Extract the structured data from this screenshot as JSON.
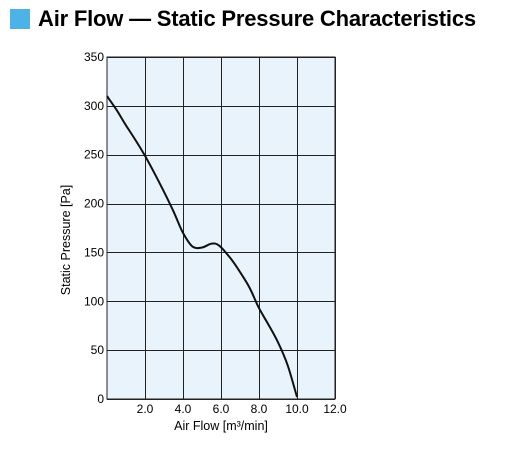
{
  "heading": {
    "title": "Air Flow — Static Pressure Characteristics",
    "accent_color": "#4db3e6"
  },
  "chart_data": {
    "type": "line",
    "title": "Air Flow — Static Pressure Characteristics",
    "xlabel": "Air Flow [m³/min]",
    "ylabel": "Static Pressure [Pa]",
    "xlim": [
      0,
      12
    ],
    "ylim": [
      0,
      350
    ],
    "x_ticks": [
      "2.0",
      "4.0",
      "6.0",
      "8.0",
      "10.0",
      "12.0"
    ],
    "x_tick_values": [
      2,
      4,
      6,
      8,
      10,
      12
    ],
    "y_ticks": [
      "0",
      "50",
      "100",
      "150",
      "200",
      "250",
      "300",
      "350"
    ],
    "y_tick_values": [
      0,
      50,
      100,
      150,
      200,
      250,
      300,
      350
    ],
    "grid": true,
    "plot_background": "#e8f3fc",
    "line_color": "#111111",
    "series": [
      {
        "x": [
          0.0,
          0.5,
          1.0,
          1.5,
          2.0,
          2.5,
          3.0,
          3.5,
          4.0,
          4.5,
          5.0,
          5.5,
          5.9,
          6.5,
          7.0,
          7.5,
          8.0,
          8.5,
          9.0,
          9.5,
          10.0
        ],
        "y": [
          310,
          296,
          280,
          265,
          249,
          231,
          212,
          192,
          170,
          156,
          155,
          159,
          157,
          144,
          130,
          114,
          93,
          76,
          58,
          35,
          2
        ]
      }
    ]
  }
}
